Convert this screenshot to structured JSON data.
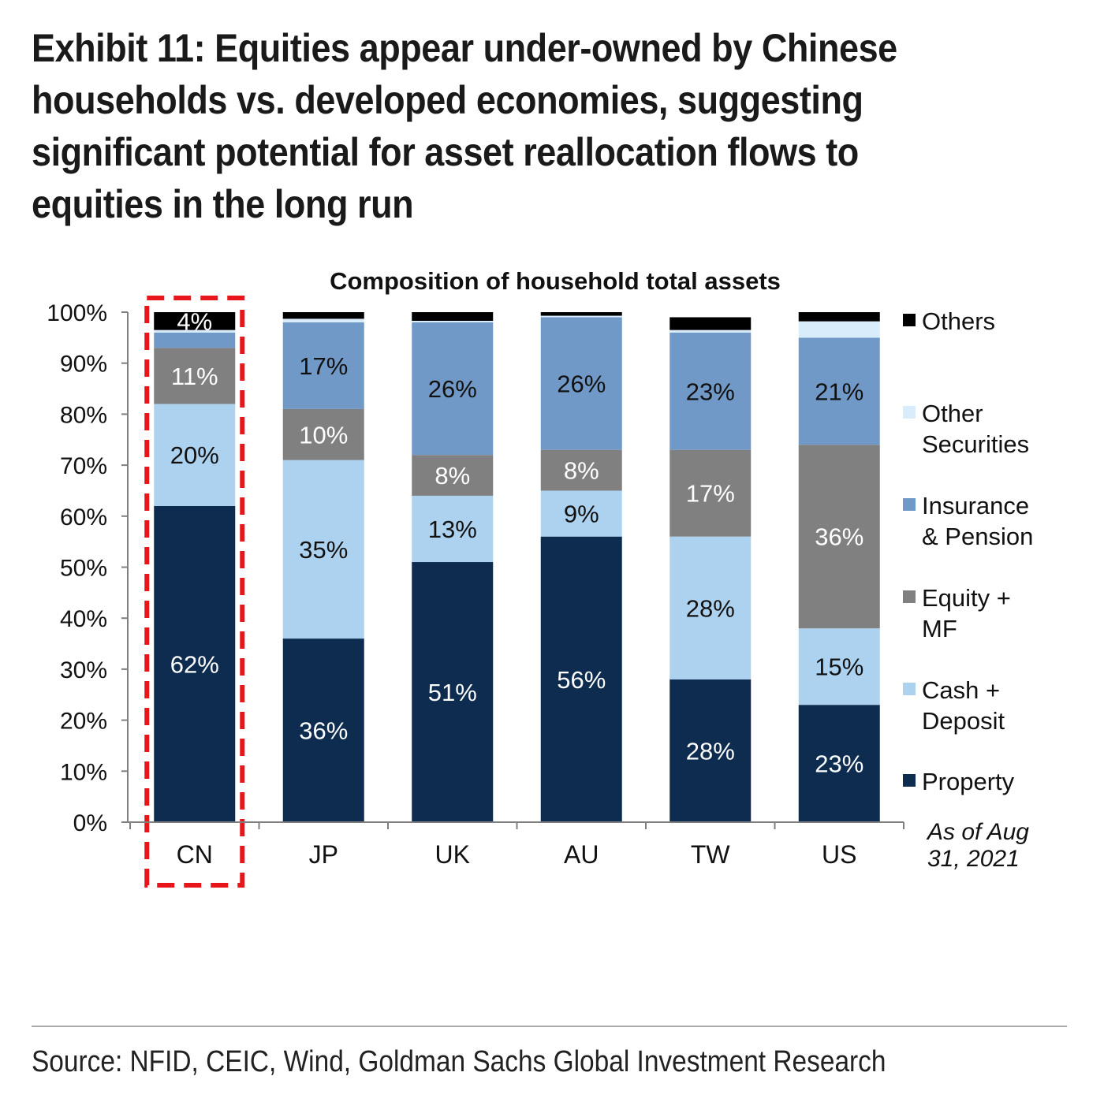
{
  "headline": "Exhibit 11: Equities appear under-owned by Chinese households vs. developed economies, suggesting significant potential for asset reallocation flows to equities in the long run",
  "source": "Source: NFID, CEIC, Wind, Goldman Sachs Global Investment Research",
  "chart_data": {
    "type": "bar",
    "stacked": true,
    "title": "Composition of household total assets",
    "xlabel": "",
    "ylabel": "",
    "ylim": [
      0,
      100
    ],
    "ytick_labels": [
      "0%",
      "10%",
      "20%",
      "30%",
      "40%",
      "50%",
      "60%",
      "70%",
      "80%",
      "90%",
      "100%"
    ],
    "categories": [
      "CN",
      "JP",
      "UK",
      "AU",
      "TW",
      "US"
    ],
    "highlight_category": "CN",
    "highlight_color": "#e8161b",
    "series": [
      {
        "name": "Property",
        "color": "#0d2c50",
        "label_color": "#ffffff",
        "values": [
          62,
          36,
          51,
          56,
          28,
          23
        ],
        "labels": [
          "62%",
          "36%",
          "51%",
          "56%",
          "28%",
          "23%"
        ]
      },
      {
        "name": "Cash + Deposit",
        "color": "#acd2f0",
        "label_color": "#111111",
        "values": [
          20,
          35,
          13,
          9,
          28,
          15
        ],
        "labels": [
          "20%",
          "35%",
          "13%",
          "9%",
          "28%",
          "15%"
        ]
      },
      {
        "name": "Equity + MF",
        "color": "#808080",
        "label_color": "#ffffff",
        "values": [
          11,
          10,
          8,
          8,
          17,
          36
        ],
        "labels": [
          "11%",
          "10%",
          "8%",
          "8%",
          "17%",
          "36%"
        ]
      },
      {
        "name": "Insurance & Pension",
        "color": "#7199c7",
        "label_color": "#111111",
        "values": [
          3,
          17,
          26,
          26,
          23,
          21
        ],
        "labels": [
          "",
          "17%",
          "26%",
          "26%",
          "23%",
          "21%"
        ]
      },
      {
        "name": "Other Securities",
        "color": "#d8ecfb",
        "label_color": "#111111",
        "values": [
          0.5,
          0.7,
          0.3,
          0.3,
          0.5,
          3.2
        ],
        "labels": [
          "",
          "",
          "",
          "",
          "",
          ""
        ]
      },
      {
        "name": "Others",
        "color": "#000000",
        "label_color": "#ffffff",
        "values": [
          3.5,
          1.3,
          1.7,
          0.7,
          2.5,
          1.8
        ],
        "labels": [
          "4%",
          "",
          "",
          "",
          "",
          ""
        ]
      }
    ],
    "legend_placement": "right",
    "legend_order": [
      "Others",
      "Other Securities",
      "Insurance & Pension",
      "Equity + MF",
      "Cash + Deposit",
      "Property"
    ],
    "legend_lines": {
      "Others": [
        "Others"
      ],
      "Other Securities": [
        "Other",
        "Securities"
      ],
      "Insurance & Pension": [
        "Insurance",
        "& Pension"
      ],
      "Equity + MF": [
        "Equity +",
        "MF"
      ],
      "Cash + Deposit": [
        "Cash +",
        "Deposit"
      ],
      "Property": [
        "Property"
      ]
    },
    "annotation": [
      "As of Aug",
      "31, 2021"
    ],
    "grid": false
  }
}
